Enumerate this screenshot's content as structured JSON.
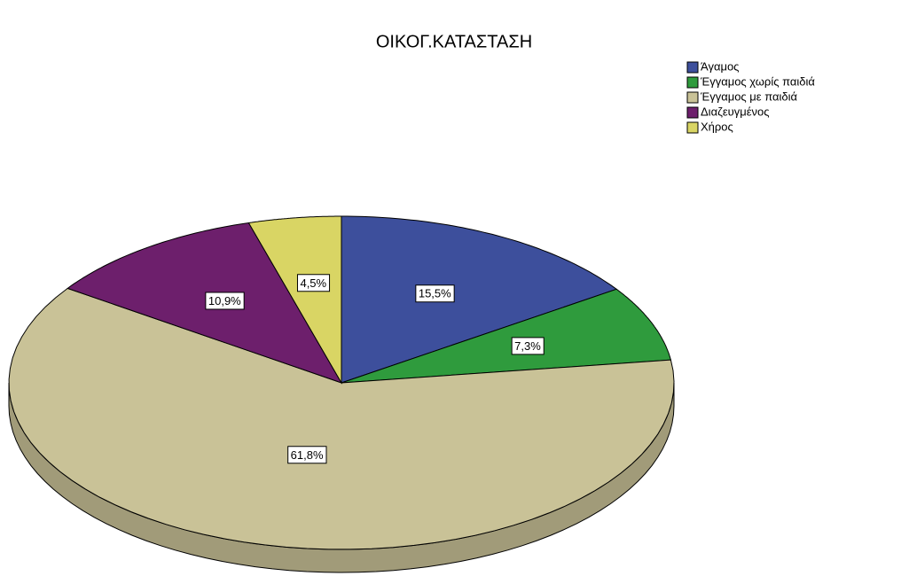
{
  "chart_data": {
    "type": "pie",
    "title": "ΟΙΚΟΓ.ΚΑΤΑΣΤΑΣΗ",
    "categories": [
      "Άγαμος",
      "Έγγαμος χωρίς παιδιά",
      "Έγγαμος με παιδιά",
      "Διαζευγμένος",
      "Χήρος"
    ],
    "values": [
      15.5,
      7.3,
      61.8,
      10.9,
      4.5
    ],
    "value_labels": [
      "15,5%",
      "7,3%",
      "61,8%",
      "10,9%",
      "4,5%"
    ],
    "colors": [
      "#3d4f9c",
      "#2f9b3d",
      "#c9c297",
      "#6d1f6c",
      "#d9d564"
    ],
    "legend": "top-right"
  }
}
